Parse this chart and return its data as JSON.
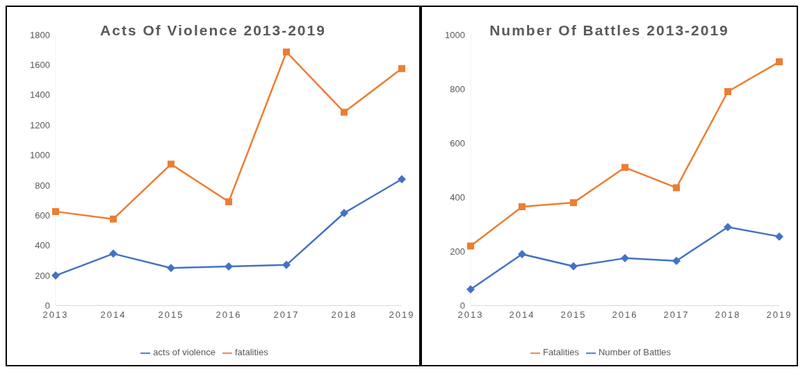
{
  "chart_data": [
    {
      "type": "line",
      "title": "Acts Of Violence 2013-2019",
      "categories": [
        "2013",
        "2014",
        "2015",
        "2016",
        "2017",
        "2018",
        "2019"
      ],
      "ylim": [
        0,
        1800
      ],
      "yticks": [
        0,
        200,
        400,
        600,
        800,
        1000,
        1200,
        1400,
        1600,
        1800
      ],
      "legend": "bottom",
      "series": [
        {
          "name": "acts of violence",
          "color": "#4472c4",
          "marker": "diamond",
          "values": [
            200,
            345,
            250,
            260,
            270,
            615,
            840
          ]
        },
        {
          "name": "fatalities",
          "color": "#ed7d31",
          "marker": "square",
          "values": [
            625,
            575,
            940,
            690,
            1685,
            1285,
            1575
          ]
        }
      ]
    },
    {
      "type": "line",
      "title": "Number Of Battles 2013-2019",
      "categories": [
        "2013",
        "2014",
        "2015",
        "2016",
        "2017",
        "2018",
        "2019"
      ],
      "ylim": [
        0,
        1000
      ],
      "yticks": [
        0,
        200,
        400,
        600,
        800,
        1000
      ],
      "legend": "bottom",
      "series": [
        {
          "name": "Number of Battles",
          "color": "#4472c4",
          "marker": "diamond",
          "values": [
            60,
            190,
            145,
            175,
            165,
            290,
            255
          ]
        },
        {
          "name": "Fatalities",
          "color": "#ed7d31",
          "marker": "square",
          "values": [
            220,
            365,
            380,
            510,
            435,
            790,
            900
          ]
        }
      ]
    }
  ]
}
